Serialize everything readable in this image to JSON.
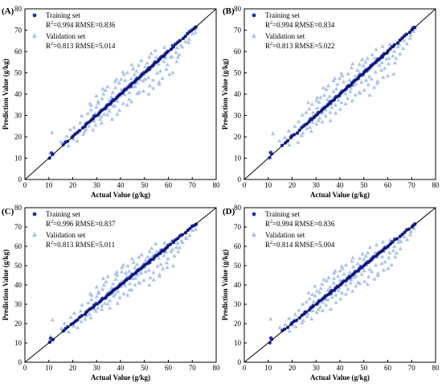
{
  "figure": {
    "x_axis_label": "Actual Value (g/kg)",
    "y_axis_label": "Prediction Value (g/kg)"
  },
  "chart_data": [
    {
      "type": "scatter",
      "panel_label": "(A)",
      "xlabel": "Actual Value (g/kg)",
      "ylabel": "Prediction Value (g/kg)",
      "xlim": [
        0,
        80
      ],
      "ylim": [
        0,
        80
      ],
      "xticks": [
        0,
        10,
        20,
        30,
        40,
        50,
        60,
        70,
        80
      ],
      "yticks": [
        0,
        10,
        20,
        30,
        40,
        50,
        60,
        70,
        80
      ],
      "reference_line": "y = x",
      "legend": {
        "training_name": "Training set",
        "training_stats": {
          "r2_label": "R",
          "r2_sup": "2",
          "r2_value": "=0.994 RMSE=0.836"
        },
        "validation_name": "Validation set",
        "validation_stats": {
          "r2_label": "R",
          "r2_sup": "2",
          "r2_value": "=0.813 RMSE=5.014"
        }
      }
    },
    {
      "type": "scatter",
      "panel_label": "(B)",
      "xlabel": "Actual Value (g/kg)",
      "ylabel": "Prediction Value (g/kg)",
      "xlim": [
        0,
        80
      ],
      "ylim": [
        0,
        80
      ],
      "xticks": [
        0,
        10,
        20,
        30,
        40,
        50,
        60,
        70,
        80
      ],
      "yticks": [
        0,
        10,
        20,
        30,
        40,
        50,
        60,
        70,
        80
      ],
      "reference_line": "y = x",
      "legend": {
        "training_name": "Training set",
        "training_stats": {
          "r2_label": "R",
          "r2_sup": "2",
          "r2_value": "=0.994 RMSE=0.834"
        },
        "validation_name": "Validation set",
        "validation_stats": {
          "r2_label": "R",
          "r2_sup": "2",
          "r2_value": "=0.813 RMSE=5.022"
        }
      }
    },
    {
      "type": "scatter",
      "panel_label": "(C)",
      "xlabel": "Actual Value (g/kg)",
      "ylabel": "Prediction Value (g/kg)",
      "xlim": [
        0,
        80
      ],
      "ylim": [
        0,
        80
      ],
      "xticks": [
        0,
        10,
        20,
        30,
        40,
        50,
        60,
        70,
        80
      ],
      "yticks": [
        0,
        10,
        20,
        30,
        40,
        50,
        60,
        70,
        80
      ],
      "reference_line": "y = x",
      "legend": {
        "training_name": "Training set",
        "training_stats": {
          "r2_label": "R",
          "r2_sup": "2",
          "r2_value": "=0.996 RMSE=0.837"
        },
        "validation_name": "Validation set",
        "validation_stats": {
          "r2_label": "R",
          "r2_sup": "2",
          "r2_value": "=0.813 RMSE=5.011"
        }
      }
    },
    {
      "type": "scatter",
      "panel_label": "(D)",
      "xlabel": "Actual Value (g/kg)",
      "ylabel": "Prediction Value (g/kg)",
      "xlim": [
        0,
        80
      ],
      "ylim": [
        0,
        80
      ],
      "xticks": [
        0,
        10,
        20,
        30,
        40,
        50,
        60,
        70,
        80
      ],
      "yticks": [
        0,
        10,
        20,
        30,
        40,
        50,
        60,
        70,
        80
      ],
      "reference_line": "y = x",
      "legend": {
        "training_name": "Training set",
        "training_stats": {
          "r2_label": "R",
          "r2_sup": "2",
          "r2_value": "=0.994 RMSE=0.836"
        },
        "validation_name": "Validation set",
        "validation_stats": {
          "r2_label": "R",
          "r2_sup": "2",
          "r2_value": "=0.814 RMSE=5.004"
        }
      }
    }
  ],
  "points": {
    "training": [
      [
        10.5,
        10.2
      ],
      [
        11,
        12.5
      ],
      [
        11.5,
        11.8
      ],
      [
        16,
        16.2
      ],
      [
        17,
        17.3
      ],
      [
        18,
        18.1
      ],
      [
        19.5,
        19.8
      ],
      [
        20,
        20.3
      ],
      [
        21,
        21.2
      ],
      [
        22,
        21.8
      ],
      [
        23,
        23.1
      ],
      [
        24,
        24.3
      ],
      [
        25,
        24.9
      ],
      [
        25.5,
        25.8
      ],
      [
        26,
        26.2
      ],
      [
        27,
        27.1
      ],
      [
        27.5,
        27.8
      ],
      [
        28,
        28.3
      ],
      [
        28.5,
        28.4
      ],
      [
        29,
        29.2
      ],
      [
        30,
        30.1
      ],
      [
        30.5,
        30.4
      ],
      [
        31,
        31.2
      ],
      [
        31.5,
        31.6
      ],
      [
        32,
        32.1
      ],
      [
        32.5,
        32.8
      ],
      [
        33,
        33.2
      ],
      [
        33.5,
        33.3
      ],
      [
        34,
        34.1
      ],
      [
        34.5,
        34.7
      ],
      [
        35,
        35.2
      ],
      [
        35.5,
        35.4
      ],
      [
        36,
        36.1
      ],
      [
        36.5,
        36.8
      ],
      [
        37,
        37.2
      ],
      [
        37.5,
        37.3
      ],
      [
        38,
        38.2
      ],
      [
        38.5,
        38.6
      ],
      [
        39,
        39.1
      ],
      [
        39.5,
        39.4
      ],
      [
        40,
        40.2
      ],
      [
        40.5,
        40.6
      ],
      [
        41,
        41.1
      ],
      [
        41.5,
        41.7
      ],
      [
        42,
        42.2
      ],
      [
        42.5,
        42.4
      ],
      [
        43,
        43.3
      ],
      [
        43.5,
        43.6
      ],
      [
        44,
        44.2
      ],
      [
        44.5,
        44.4
      ],
      [
        45,
        45.3
      ],
      [
        45.5,
        45.6
      ],
      [
        46,
        46.1
      ],
      [
        46.5,
        46.7
      ],
      [
        47,
        47.2
      ],
      [
        47.5,
        47.4
      ],
      [
        48,
        48.3
      ],
      [
        48.5,
        48.6
      ],
      [
        49,
        49.2
      ],
      [
        49.5,
        49.4
      ],
      [
        50,
        50.3
      ],
      [
        50.5,
        50.7
      ],
      [
        51,
        51.2
      ],
      [
        51.5,
        51.3
      ],
      [
        52,
        52.2
      ],
      [
        52.5,
        52.6
      ],
      [
        53,
        53.3
      ],
      [
        53.5,
        53.4
      ],
      [
        54,
        54.2
      ],
      [
        54.5,
        54.8
      ],
      [
        55,
        55.1
      ],
      [
        55.5,
        55.6
      ],
      [
        56,
        56.3
      ],
      [
        56.5,
        56.4
      ],
      [
        57,
        57.2
      ],
      [
        57.5,
        57.8
      ],
      [
        58,
        58.1
      ],
      [
        58.5,
        58.7
      ],
      [
        59,
        59.2
      ],
      [
        59.5,
        59.4
      ],
      [
        60,
        60.3
      ],
      [
        61,
        61.2
      ],
      [
        62,
        62.1
      ],
      [
        63,
        63.4
      ],
      [
        64,
        64.1
      ],
      [
        65,
        65.3
      ],
      [
        66,
        66.2
      ],
      [
        67,
        67.1
      ],
      [
        68,
        68.3
      ],
      [
        69,
        69.1
      ],
      [
        70,
        70.2
      ],
      [
        70.5,
        70.8
      ],
      [
        71,
        71.1
      ],
      [
        71.5,
        71.4
      ],
      [
        29,
        29.5
      ],
      [
        36,
        35.7
      ],
      [
        44,
        43.7
      ],
      [
        52,
        51.7
      ],
      [
        58,
        57.6
      ],
      [
        62,
        62.5
      ]
    ],
    "validation": [
      [
        11,
        13
      ],
      [
        11.5,
        22
      ],
      [
        15,
        18
      ],
      [
        17,
        20
      ],
      [
        18.5,
        16
      ],
      [
        19,
        23
      ],
      [
        20,
        19
      ],
      [
        21,
        25
      ],
      [
        22,
        18
      ],
      [
        23,
        27
      ],
      [
        24,
        21
      ],
      [
        24,
        30
      ],
      [
        25,
        22
      ],
      [
        26,
        31
      ],
      [
        26,
        24
      ],
      [
        27,
        25
      ],
      [
        27.5,
        33
      ],
      [
        28,
        23
      ],
      [
        28,
        35
      ],
      [
        29,
        27
      ],
      [
        29,
        31
      ],
      [
        30,
        26
      ],
      [
        30,
        34
      ],
      [
        30.5,
        37
      ],
      [
        31,
        28
      ],
      [
        31,
        36
      ],
      [
        32,
        29
      ],
      [
        32,
        38
      ],
      [
        32.5,
        27
      ],
      [
        33,
        40
      ],
      [
        33,
        31
      ],
      [
        34,
        33
      ],
      [
        34,
        42
      ],
      [
        34.5,
        30
      ],
      [
        35,
        37
      ],
      [
        35,
        44
      ],
      [
        35.5,
        32
      ],
      [
        36,
        39
      ],
      [
        36,
        28
      ],
      [
        37,
        41
      ],
      [
        37,
        34
      ],
      [
        37.5,
        46
      ],
      [
        38,
        35
      ],
      [
        38,
        43
      ],
      [
        38.5,
        31
      ],
      [
        39,
        45
      ],
      [
        39,
        37
      ],
      [
        40,
        39
      ],
      [
        40,
        47
      ],
      [
        40,
        33
      ],
      [
        40.5,
        42
      ],
      [
        41,
        36
      ],
      [
        41,
        49
      ],
      [
        42,
        40
      ],
      [
        42,
        46
      ],
      [
        42.5,
        35
      ],
      [
        43,
        44
      ],
      [
        43,
        50
      ],
      [
        43.5,
        38
      ],
      [
        44,
        47
      ],
      [
        44,
        41
      ],
      [
        45,
        43
      ],
      [
        45,
        52
      ],
      [
        45,
        37
      ],
      [
        46,
        49
      ],
      [
        46,
        44
      ],
      [
        46.5,
        40
      ],
      [
        47,
        51
      ],
      [
        47,
        45
      ],
      [
        48,
        47
      ],
      [
        48,
        54
      ],
      [
        48,
        41
      ],
      [
        48.5,
        50
      ],
      [
        49,
        46
      ],
      [
        49,
        56
      ],
      [
        50,
        49
      ],
      [
        50,
        53
      ],
      [
        50,
        42
      ],
      [
        50.5,
        47
      ],
      [
        51,
        55
      ],
      [
        51,
        51
      ],
      [
        52,
        48
      ],
      [
        52,
        57
      ],
      [
        52,
        44
      ],
      [
        53,
        53
      ],
      [
        53,
        59
      ],
      [
        53.5,
        47
      ],
      [
        54,
        55
      ],
      [
        54,
        43
      ],
      [
        55,
        57
      ],
      [
        55,
        50
      ],
      [
        55,
        61
      ],
      [
        56,
        54
      ],
      [
        56,
        46
      ],
      [
        57,
        58
      ],
      [
        57,
        51
      ],
      [
        58,
        55
      ],
      [
        58,
        62
      ],
      [
        58,
        48
      ],
      [
        59,
        57
      ],
      [
        59,
        52
      ],
      [
        60,
        60
      ],
      [
        60,
        54
      ],
      [
        61,
        57
      ],
      [
        61,
        63
      ],
      [
        62,
        58
      ],
      [
        62,
        50
      ],
      [
        63,
        60
      ],
      [
        63,
        55
      ],
      [
        64,
        62
      ],
      [
        64,
        57
      ],
      [
        65,
        63
      ],
      [
        65,
        59
      ],
      [
        66,
        62
      ],
      [
        67,
        65
      ],
      [
        68,
        64
      ],
      [
        69,
        66
      ],
      [
        70,
        68
      ],
      [
        71,
        69
      ],
      [
        48,
        41
      ],
      [
        52,
        40
      ],
      [
        56,
        45
      ],
      [
        60,
        49
      ],
      [
        45,
        54
      ],
      [
        41,
        50
      ],
      [
        38,
        47
      ],
      [
        33,
        43
      ],
      [
        30,
        39
      ],
      [
        27,
        36
      ]
    ]
  }
}
